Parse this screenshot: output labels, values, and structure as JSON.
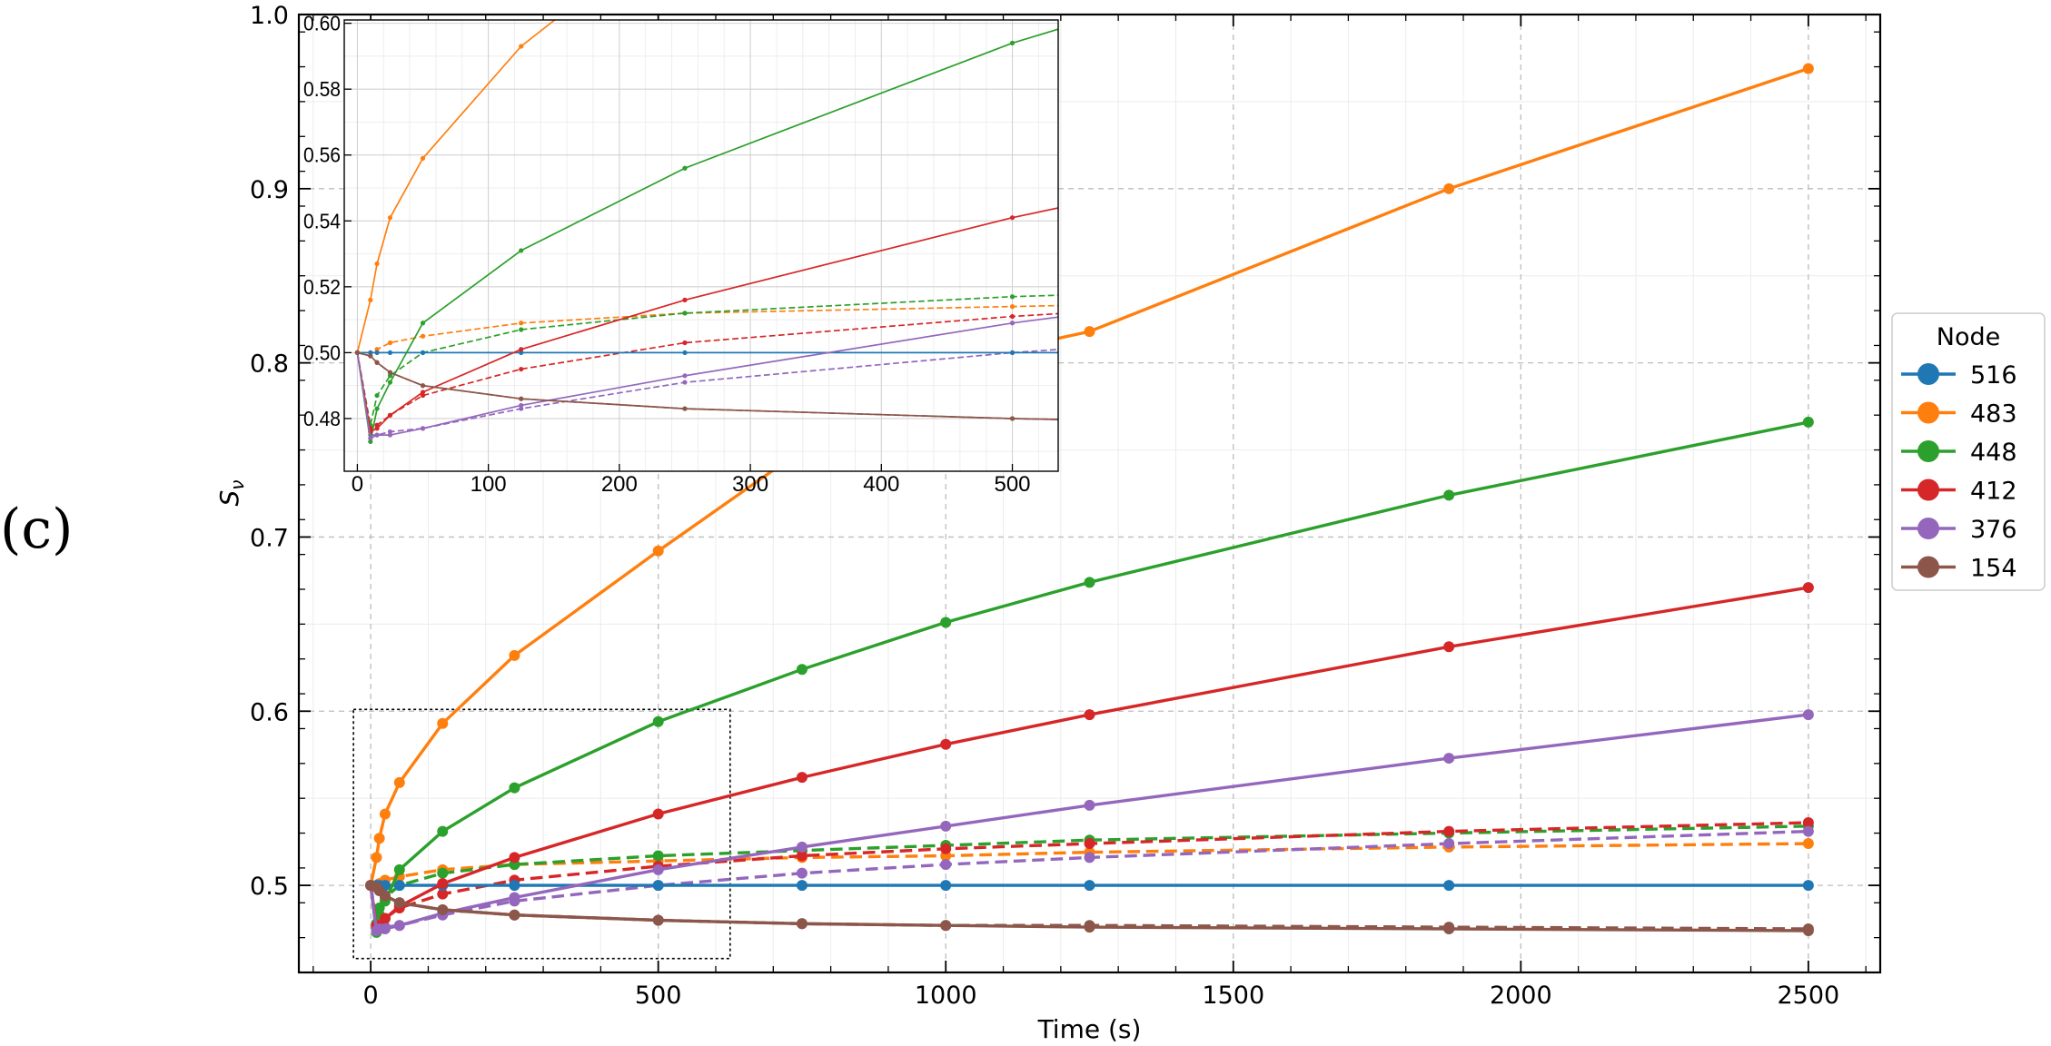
{
  "panel_label": "(c)",
  "chart_data": [
    {
      "type": "line",
      "role": "main",
      "xlabel": "Time (s)",
      "ylabel": "S_ν",
      "xlim": [
        -125,
        2625
      ],
      "ylim": [
        0.45,
        1.0
      ],
      "xticks": [
        0,
        500,
        1000,
        1500,
        2000,
        2500
      ],
      "xtick_labels": [
        "0",
        "500",
        "1000",
        "1500",
        "2000",
        "2500"
      ],
      "yticks": [
        0.5,
        0.6,
        0.7,
        0.8,
        0.9,
        1.0
      ],
      "ytick_labels": [
        "0.5",
        "0.6",
        "0.7",
        "0.8",
        "0.9",
        "1.0"
      ],
      "grid": true,
      "zoom_box": {
        "x": [
          -30,
          625
        ],
        "y": [
          0.458,
          0.601
        ]
      },
      "legend": {
        "title": "Node",
        "position": "right",
        "entries": [
          "516",
          "483",
          "448",
          "412",
          "376",
          "154"
        ]
      },
      "x": [
        0,
        10,
        15,
        25,
        50,
        125,
        250,
        500,
        750,
        1000,
        1250,
        1875,
        2500
      ],
      "series": [
        {
          "name": "516",
          "color": "#1f77b4",
          "style": "solid",
          "values": [
            0.5,
            0.5,
            0.5,
            0.5,
            0.5,
            0.5,
            0.5,
            0.5,
            0.5,
            0.5,
            0.5,
            0.5,
            0.5
          ]
        },
        {
          "name": "483",
          "color": "#ff7f0e",
          "style": "solid",
          "values": [
            0.5,
            0.516,
            0.527,
            0.541,
            0.559,
            0.593,
            0.632,
            0.692,
            0.75,
            0.8,
            0.818,
            0.9,
            0.969
          ]
        },
        {
          "name": "448",
          "color": "#2ca02c",
          "style": "solid",
          "values": [
            0.5,
            0.473,
            0.483,
            0.491,
            0.509,
            0.531,
            0.556,
            0.594,
            0.624,
            0.651,
            0.674,
            0.724,
            0.766
          ]
        },
        {
          "name": "412",
          "color": "#d62728",
          "style": "solid",
          "values": [
            0.5,
            0.476,
            0.477,
            0.481,
            0.488,
            0.501,
            0.516,
            0.541,
            0.562,
            0.581,
            0.598,
            0.637,
            0.671
          ]
        },
        {
          "name": "376",
          "color": "#9467bd",
          "style": "solid",
          "values": [
            0.5,
            0.474,
            0.475,
            0.475,
            0.477,
            0.484,
            0.493,
            0.509,
            0.522,
            0.534,
            0.546,
            0.573,
            0.598
          ]
        },
        {
          "name": "154",
          "color": "#8c564b",
          "style": "solid",
          "values": [
            0.5,
            0.499,
            0.497,
            0.494,
            0.49,
            0.486,
            0.483,
            0.48,
            0.478,
            0.477,
            0.476,
            0.475,
            0.474
          ]
        },
        {
          "name": "483",
          "color": "#ff7f0e",
          "style": "dashed",
          "values": [
            0.5,
            0.5,
            0.501,
            0.503,
            0.505,
            0.509,
            0.512,
            0.514,
            0.516,
            0.517,
            0.519,
            0.522,
            0.524
          ]
        },
        {
          "name": "448",
          "color": "#2ca02c",
          "style": "dashed",
          "values": [
            0.5,
            0.478,
            0.487,
            0.493,
            0.5,
            0.507,
            0.512,
            0.517,
            0.52,
            0.523,
            0.526,
            0.53,
            0.534
          ]
        },
        {
          "name": "412",
          "color": "#d62728",
          "style": "dashed",
          "values": [
            0.5,
            0.477,
            0.478,
            0.481,
            0.487,
            0.495,
            0.503,
            0.511,
            0.517,
            0.521,
            0.524,
            0.531,
            0.536
          ]
        },
        {
          "name": "376",
          "color": "#9467bd",
          "style": "dashed",
          "values": [
            0.5,
            0.475,
            0.475,
            0.476,
            0.477,
            0.483,
            0.491,
            0.5,
            0.507,
            0.512,
            0.516,
            0.524,
            0.531
          ]
        },
        {
          "name": "154",
          "color": "#8c564b",
          "style": "dashed",
          "values": [
            0.5,
            0.499,
            0.497,
            0.494,
            0.49,
            0.486,
            0.483,
            0.48,
            0.478,
            0.477,
            0.477,
            0.476,
            0.475
          ]
        }
      ]
    },
    {
      "type": "line",
      "role": "inset",
      "xlim": [
        -10,
        535
      ],
      "ylim": [
        0.464,
        0.601
      ],
      "xticks": [
        0,
        100,
        200,
        300,
        400,
        500
      ],
      "xtick_labels": [
        "0",
        "100",
        "200",
        "300",
        "400",
        "500"
      ],
      "yticks": [
        0.48,
        0.5,
        0.52,
        0.54,
        0.56,
        0.58,
        0.6
      ],
      "ytick_labels": [
        "0.48",
        "0.50",
        "0.52",
        "0.54",
        "0.56",
        "0.58",
        "0.60"
      ],
      "grid": true
    }
  ]
}
